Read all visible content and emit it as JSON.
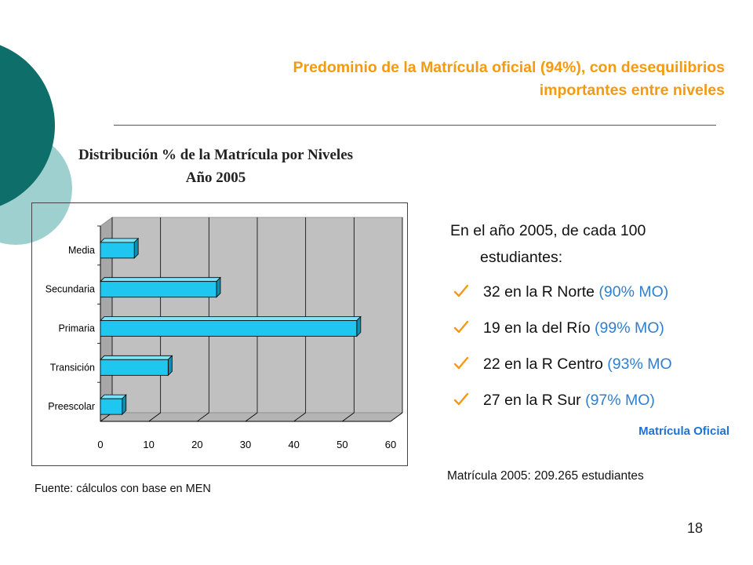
{
  "slide": {
    "title_line1": "Predominio de la Matrícula oficial (94%), con desequilibrios",
    "title_line2": "importantes entre niveles",
    "page_number": "18",
    "colors": {
      "title": "#F59A0E",
      "accent_blue": "#2F7FD0",
      "bar_fill": "#1EC6F0",
      "deco_dark": "#0E6E6A",
      "deco_light": "#9FD0D0"
    }
  },
  "chart_title_line1": "Distribución % de la Matrícula por Niveles",
  "chart_title_line2": "Año 2005",
  "source": "Fuente: cálculos con base en MEN",
  "chart_data": {
    "type": "bar",
    "orientation": "horizontal",
    "categories": [
      "Media",
      "Secundaria",
      "Primaria",
      "Transición",
      "Preescolar"
    ],
    "values": [
      7,
      24,
      53,
      14,
      4.5
    ],
    "xlim": [
      0,
      60
    ],
    "x_ticks": [
      "0",
      "10",
      "20",
      "30",
      "40",
      "50",
      "60"
    ],
    "grid": true,
    "style": "3d"
  },
  "summary": {
    "intro_line1": "En el año 2005, de cada 100",
    "intro_line2": "estudiantes:",
    "bullets": [
      {
        "text": "32 en la R Norte",
        "pct": "(90% MO)"
      },
      {
        "text": "19 en la del Río",
        "pct": "(99% MO)"
      },
      {
        "text": "22 en la R Centro",
        "pct": "(93% MO"
      },
      {
        "text": "27 en la R Sur",
        "pct": "(97% MO)"
      }
    ],
    "mo_label": "Matrícula Oficial",
    "total": "Matrícula 2005:  209.265 estudiantes"
  }
}
